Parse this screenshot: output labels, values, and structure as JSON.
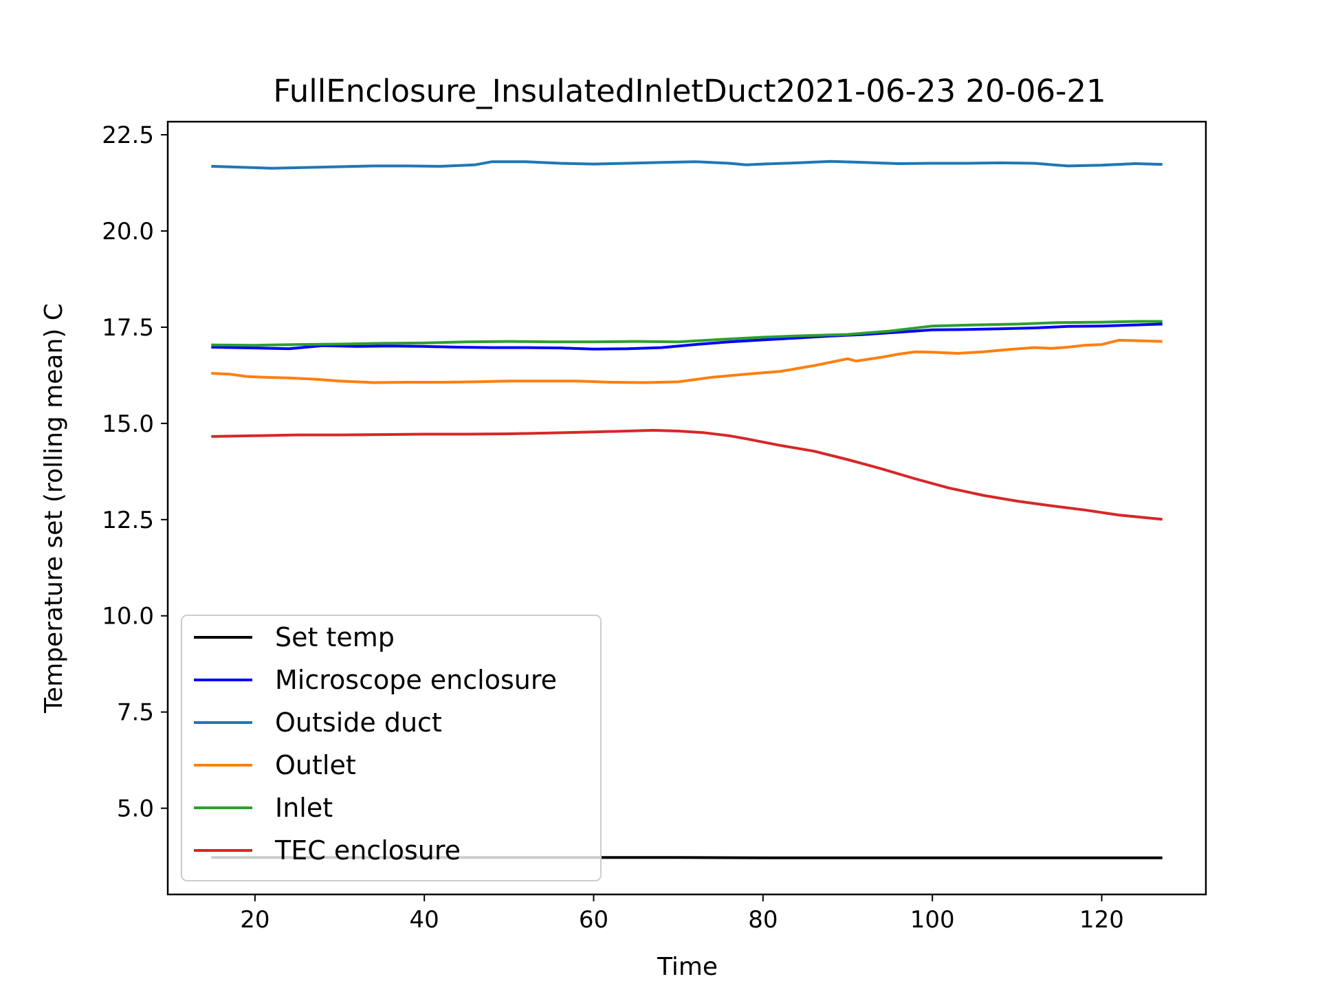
{
  "chart_data": {
    "type": "line",
    "title": "FullEnclosure_InsulatedInletDuct2021-06-23 20-06-21",
    "xlabel": "Time",
    "ylabel": "Temperature set (rolling mean) C",
    "xlim": [
      9.7,
      132.3
    ],
    "ylim": [
      2.76,
      22.84
    ],
    "xticks": [
      20,
      40,
      60,
      80,
      100,
      120
    ],
    "xtick_labels": [
      "20",
      "40",
      "60",
      "80",
      "100",
      "120"
    ],
    "yticks": [
      5.0,
      7.5,
      10.0,
      12.5,
      15.0,
      17.5,
      20.0,
      22.5
    ],
    "ytick_labels": [
      "5.0",
      "7.5",
      "10.0",
      "12.5",
      "15.0",
      "17.5",
      "20.0",
      "22.5"
    ],
    "grid": false,
    "legend_position": "lower-left",
    "series": [
      {
        "name": "Set temp",
        "color": "#000000",
        "x": [
          15,
          20,
          30,
          40,
          50,
          60,
          70,
          80,
          90,
          100,
          110,
          120,
          127
        ],
        "y": [
          3.72,
          3.72,
          3.72,
          3.72,
          3.72,
          3.72,
          3.72,
          3.71,
          3.71,
          3.71,
          3.71,
          3.71,
          3.71
        ]
      },
      {
        "name": "Microscope enclosure",
        "color": "#0000ff",
        "x": [
          15,
          20,
          24,
          28,
          32,
          36,
          40,
          44,
          48,
          52,
          56,
          60,
          64,
          68,
          72,
          76,
          80,
          84,
          88,
          92,
          96,
          100,
          104,
          108,
          112,
          116,
          120,
          124,
          127
        ],
        "y": [
          16.98,
          16.96,
          16.94,
          17.02,
          17.0,
          17.01,
          17.0,
          16.98,
          16.97,
          16.97,
          16.96,
          16.93,
          16.94,
          16.97,
          17.05,
          17.12,
          17.17,
          17.22,
          17.27,
          17.31,
          17.37,
          17.43,
          17.44,
          17.46,
          17.48,
          17.52,
          17.53,
          17.56,
          17.58
        ]
      },
      {
        "name": "Outside duct",
        "color": "#1f77b4",
        "x": [
          15,
          18,
          22,
          26,
          30,
          34,
          38,
          42,
          46,
          48,
          52,
          56,
          60,
          64,
          68,
          72,
          76,
          78,
          80,
          84,
          88,
          92,
          96,
          100,
          104,
          108,
          112,
          116,
          120,
          124,
          127
        ],
        "y": [
          21.68,
          21.66,
          21.63,
          21.65,
          21.67,
          21.69,
          21.69,
          21.68,
          21.72,
          21.8,
          21.8,
          21.76,
          21.74,
          21.76,
          21.78,
          21.8,
          21.76,
          21.72,
          21.74,
          21.77,
          21.81,
          21.78,
          21.75,
          21.76,
          21.76,
          21.77,
          21.76,
          21.69,
          21.71,
          21.75,
          21.73
        ]
      },
      {
        "name": "Outlet",
        "color": "#ff7f0e",
        "x": [
          15,
          17,
          19,
          21,
          24,
          27,
          30,
          34,
          38,
          42,
          46,
          50,
          54,
          58,
          62,
          66,
          70,
          74,
          78,
          82,
          86,
          90,
          91,
          94,
          96,
          98,
          100,
          103,
          106,
          109,
          112,
          114,
          116,
          118,
          120,
          122,
          124,
          127
        ],
        "y": [
          16.3,
          16.28,
          16.22,
          16.2,
          16.18,
          16.15,
          16.1,
          16.06,
          16.07,
          16.07,
          16.08,
          16.1,
          16.1,
          16.1,
          16.07,
          16.06,
          16.08,
          16.2,
          16.28,
          16.35,
          16.5,
          16.68,
          16.62,
          16.72,
          16.8,
          16.86,
          16.85,
          16.82,
          16.86,
          16.92,
          16.97,
          16.95,
          16.98,
          17.03,
          17.05,
          17.16,
          17.15,
          17.13
        ]
      },
      {
        "name": "Inlet",
        "color": "#2ca02c",
        "x": [
          15,
          20,
          25,
          30,
          35,
          40,
          45,
          50,
          55,
          60,
          65,
          70,
          75,
          80,
          85,
          90,
          95,
          100,
          105,
          110,
          115,
          120,
          124,
          127
        ],
        "y": [
          17.04,
          17.03,
          17.05,
          17.06,
          17.08,
          17.09,
          17.12,
          17.13,
          17.12,
          17.12,
          17.13,
          17.12,
          17.18,
          17.24,
          17.28,
          17.31,
          17.4,
          17.53,
          17.56,
          17.58,
          17.62,
          17.63,
          17.65,
          17.65
        ]
      },
      {
        "name": "TEC enclosure",
        "color": "#d62728",
        "x": [
          15,
          20,
          25,
          30,
          35,
          40,
          45,
          50,
          55,
          60,
          64,
          67,
          70,
          73,
          76,
          78,
          82,
          86,
          90,
          94,
          98,
          102,
          106,
          110,
          114,
          118,
          122,
          127
        ],
        "y": [
          14.66,
          14.68,
          14.7,
          14.7,
          14.71,
          14.72,
          14.72,
          14.73,
          14.75,
          14.78,
          14.8,
          14.82,
          14.8,
          14.76,
          14.68,
          14.6,
          14.43,
          14.28,
          14.06,
          13.82,
          13.56,
          13.32,
          13.13,
          12.98,
          12.86,
          12.75,
          12.62,
          12.51
        ]
      }
    ]
  }
}
